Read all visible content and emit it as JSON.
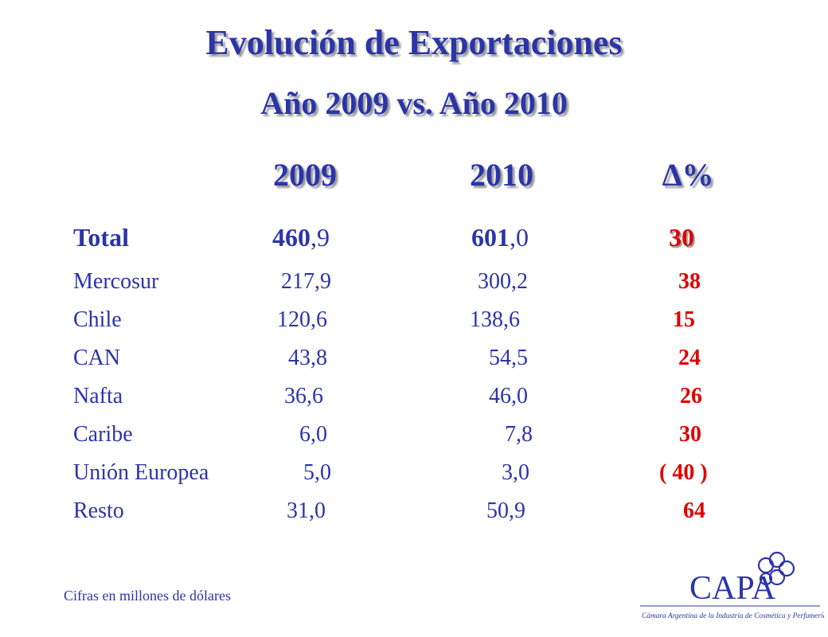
{
  "title": "Evolución de Exportaciones",
  "subtitle": "Año 2009  vs.  Año 2010",
  "headers": {
    "y2009": "2009",
    "y2010": "2010",
    "delta": "∆%"
  },
  "total": {
    "label": "Total",
    "v2009_int": "460",
    "v2009_dec": ",9",
    "v2010_int": "601",
    "v2010_dec": ",0",
    "delta": "30"
  },
  "rows": [
    {
      "label": "Mercosur",
      "v2009": "217,9",
      "v2010": "300,2",
      "delta": "38"
    },
    {
      "label": "Chile",
      "v2009": "120,6",
      "v2010": "138,6",
      "delta": "15"
    },
    {
      "label": "CAN",
      "v2009": "43,8",
      "v2010": "54,5",
      "delta": "24"
    },
    {
      "label": "Nafta",
      "v2009": "36,6",
      "v2010": "46,0",
      "delta": "26"
    },
    {
      "label": "Caribe",
      "v2009": "6,0",
      "v2010": "7,8",
      "delta": "30"
    },
    {
      "label": "Unión Europea",
      "v2009": "5,0",
      "v2010": "3,0",
      "delta": "( 40 )"
    },
    {
      "label": "Resto",
      "v2009": "31,0",
      "v2010": "50,9",
      "delta": "64"
    }
  ],
  "footnote": "Cifras en millones de dólares",
  "logo": {
    "name": "CAPA",
    "caption": "Cámara Argentina de la Industria de Cosmética y Perfumería",
    "color": "#2b35a8"
  }
}
